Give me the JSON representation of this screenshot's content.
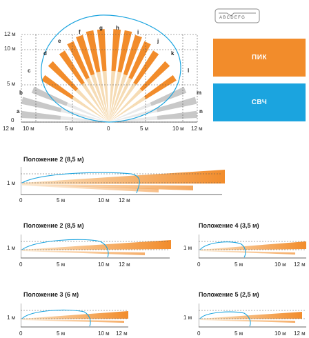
{
  "colors": {
    "pik": "#f28c2b",
    "svch": "#1ba4df",
    "gray": "#c8c8c8",
    "beige": "#f6dcb5"
  },
  "selector": {
    "letters": "ABCDEFG"
  },
  "top": {
    "y_ticks": [
      "12 м",
      "10 м",
      "5 м",
      "0"
    ],
    "x_ticks": [
      "12 м",
      "10 м",
      "5 м",
      "0",
      "5 м",
      "10 м",
      "12 м"
    ],
    "zones": [
      "a",
      "b",
      "c",
      "d",
      "e",
      "f",
      "g",
      "h",
      "i",
      "j",
      "k",
      "l",
      "m",
      "n"
    ]
  },
  "legend": {
    "pik": "ПИК",
    "svch": "СВЧ"
  },
  "side_views": [
    {
      "title": "Положение 2 (8,5 м)",
      "y_label": "1 м",
      "x_ticks": [
        "0",
        "5 м",
        "10 м",
        "12 м"
      ]
    },
    {
      "title": "Положение 2 (8,5 м)",
      "y_label": "1 м",
      "x_ticks": [
        "0",
        "5 м",
        "10 м",
        "12 м"
      ]
    },
    {
      "title": "Положение 4 (3,5 м)",
      "y_label": "1 м",
      "x_ticks": [
        "0",
        "5 м",
        "10 м",
        "12 м"
      ]
    },
    {
      "title": "Положение 3 (6 м)",
      "y_label": "1 м",
      "x_ticks": [
        "0",
        "5 м",
        "10 м",
        "12 м"
      ]
    },
    {
      "title": "Положение 5 (2,5 м)",
      "y_label": "1 м",
      "x_ticks": [
        "0",
        "5 м",
        "10 м",
        "12 м"
      ]
    }
  ]
}
